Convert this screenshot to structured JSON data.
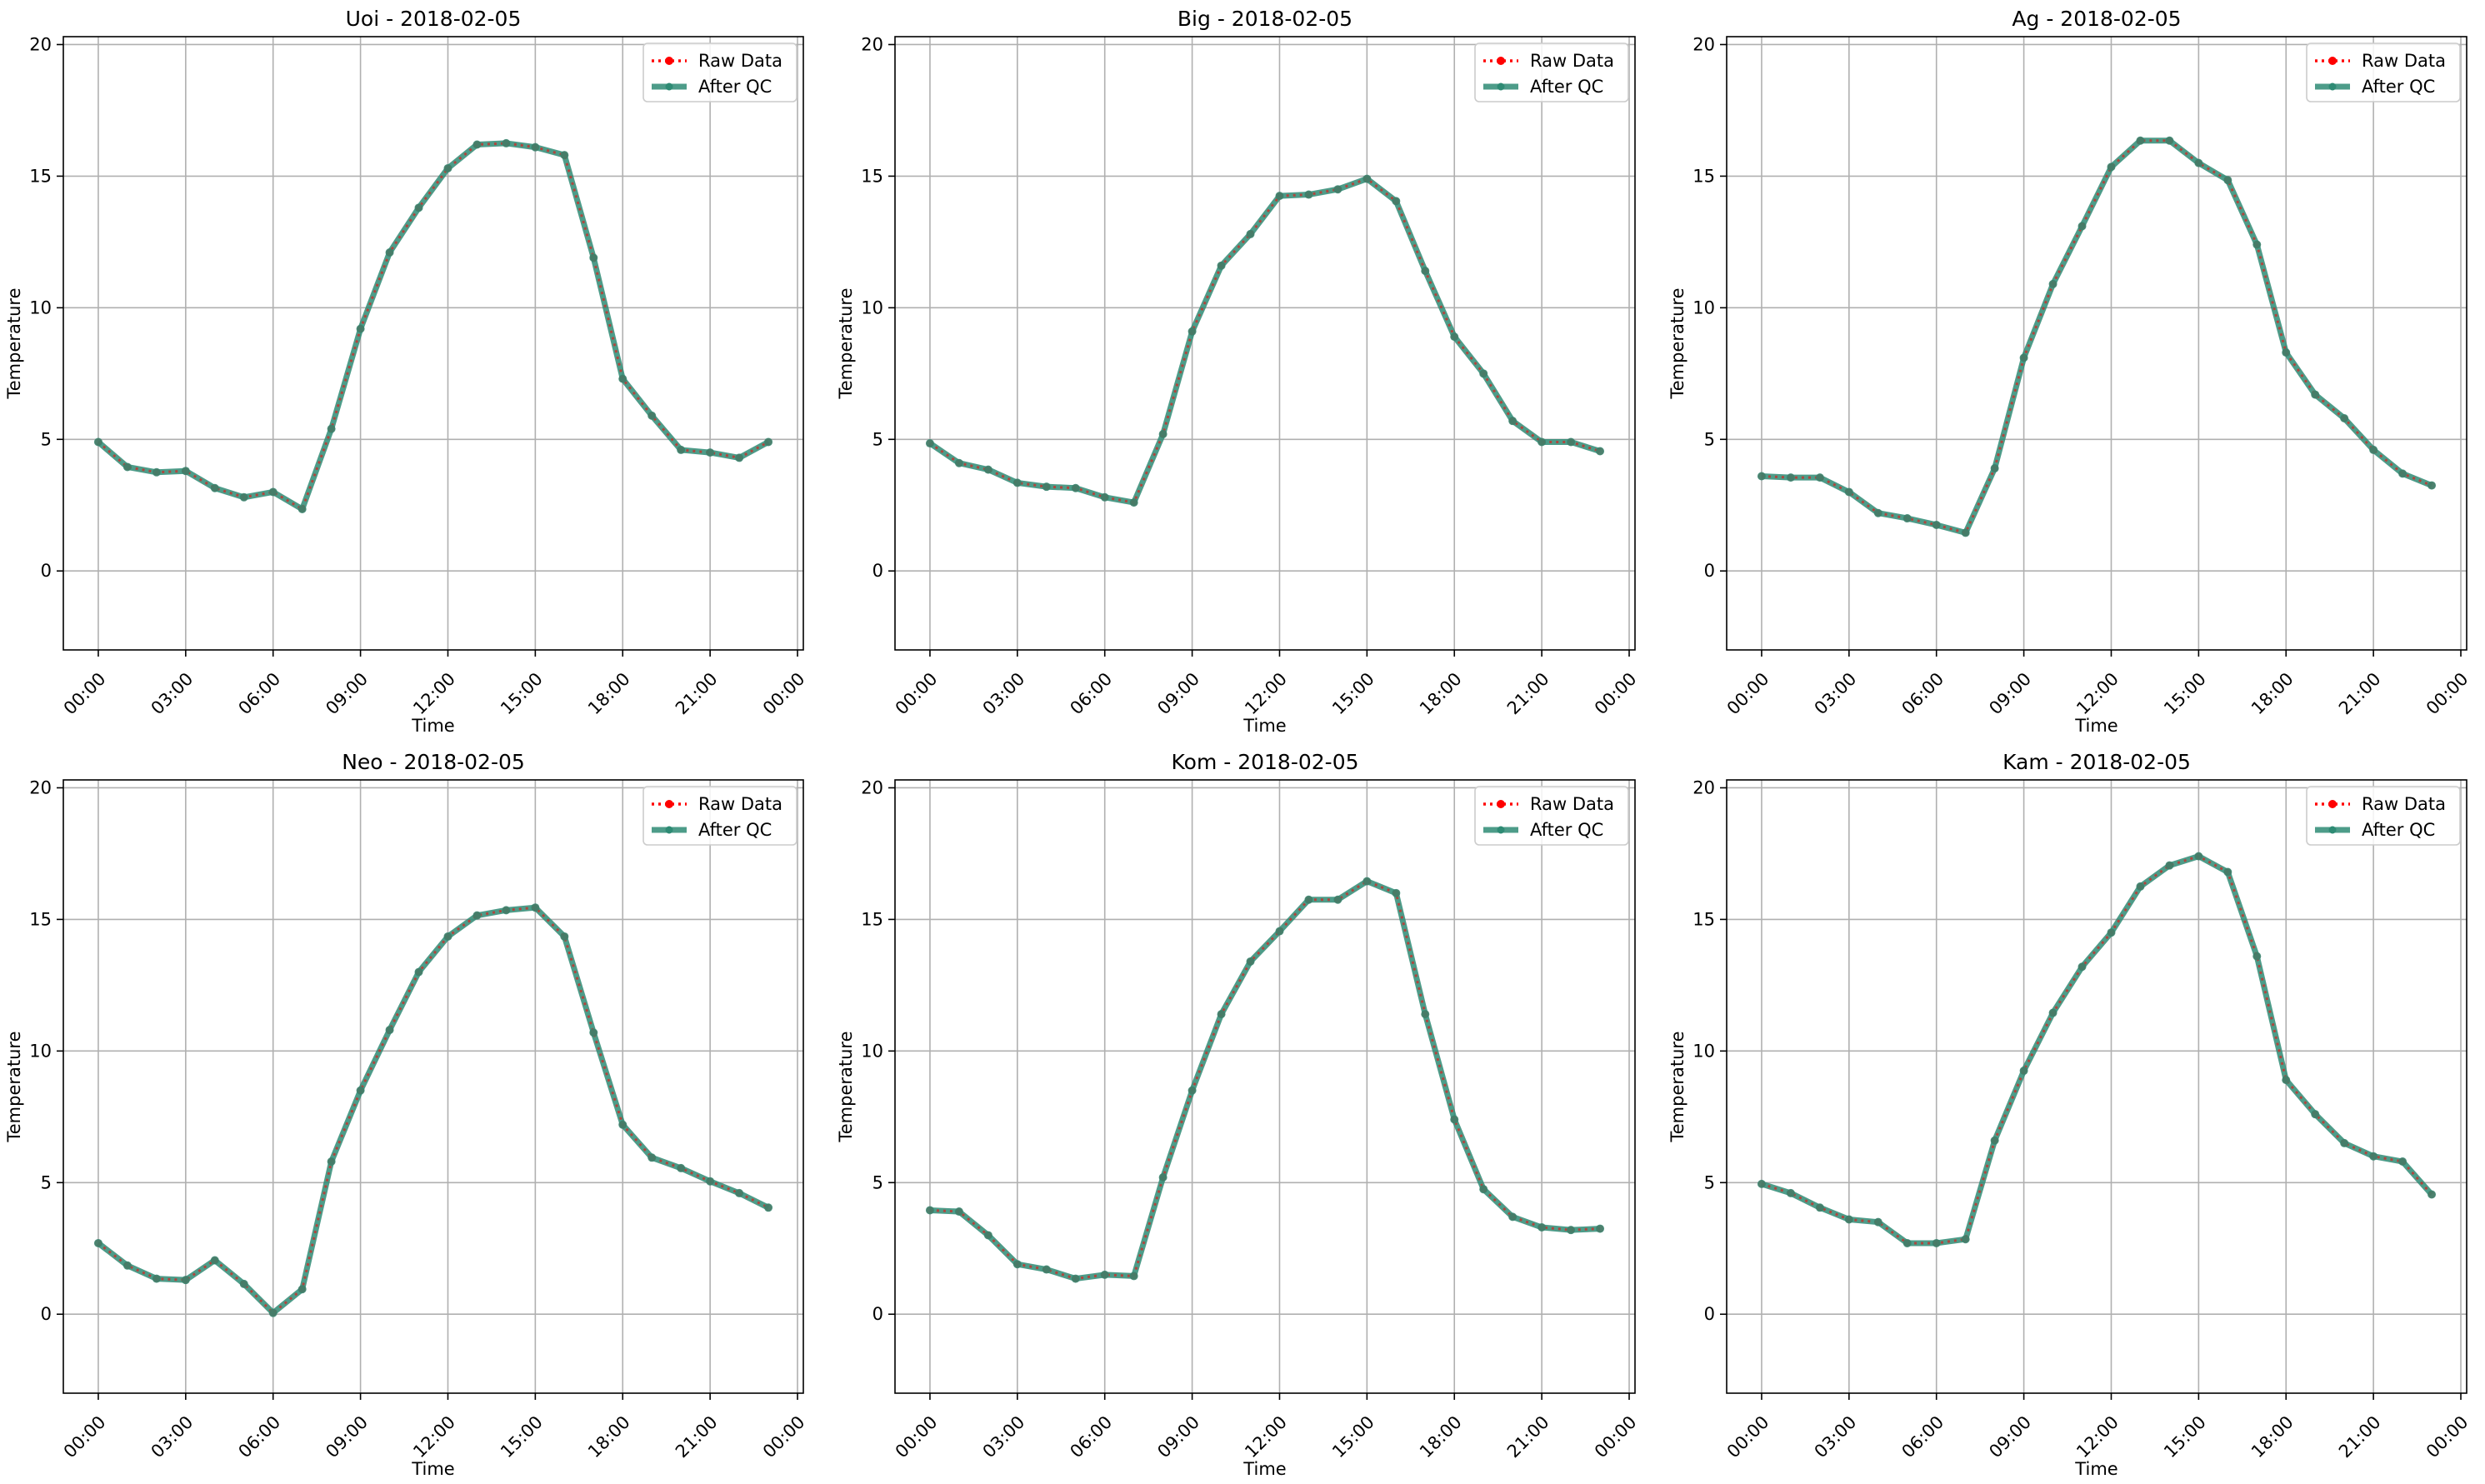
{
  "figure": {
    "legend_raw_label": "Raw Data",
    "legend_qc_label": "After QC"
  },
  "colors": {
    "raw": "#ff0000",
    "qc": "#2e8b74",
    "grid": "#b0b0b0"
  },
  "chart_data": [
    {
      "type": "line",
      "title": "Uoi - 2018-02-05",
      "xlabel": "Time",
      "ylabel": "Temperature",
      "xticks": [
        "00:00",
        "03:00",
        "06:00",
        "09:00",
        "12:00",
        "15:00",
        "18:00",
        "21:00",
        "00:00"
      ],
      "yticks": [
        0,
        5,
        10,
        15,
        20
      ],
      "ylim": [
        -3,
        20.3
      ],
      "xlim_hours": [
        -1.2,
        24.2
      ],
      "grid": true,
      "legend": "top-right",
      "x_hours": [
        0,
        1,
        2,
        3,
        4,
        5,
        6,
        7,
        8,
        9,
        10,
        11,
        12,
        13,
        14,
        15,
        16,
        17,
        18,
        19,
        20,
        21,
        22,
        23
      ],
      "series": [
        {
          "name": "Raw Data",
          "values": [
            4.9,
            3.95,
            3.75,
            3.8,
            3.15,
            2.8,
            3.0,
            2.35,
            5.4,
            9.2,
            12.1,
            13.8,
            15.3,
            16.2,
            16.25,
            16.1,
            15.8,
            11.9,
            7.3,
            5.9,
            4.6,
            4.5,
            4.3,
            4.9
          ]
        },
        {
          "name": "After QC",
          "values": [
            4.9,
            3.95,
            3.75,
            3.8,
            3.15,
            2.8,
            3.0,
            2.35,
            5.4,
            9.2,
            12.1,
            13.8,
            15.3,
            16.2,
            16.25,
            16.1,
            15.8,
            11.9,
            7.3,
            5.9,
            4.6,
            4.5,
            4.3,
            4.9
          ]
        }
      ]
    },
    {
      "type": "line",
      "title": "Big - 2018-02-05",
      "xlabel": "Time",
      "ylabel": "Temperature",
      "xticks": [
        "00:00",
        "03:00",
        "06:00",
        "09:00",
        "12:00",
        "15:00",
        "18:00",
        "21:00",
        "00:00"
      ],
      "yticks": [
        0,
        5,
        10,
        15,
        20
      ],
      "ylim": [
        -3,
        20.3
      ],
      "xlim_hours": [
        -1.2,
        24.2
      ],
      "grid": true,
      "legend": "top-right",
      "x_hours": [
        0,
        1,
        2,
        3,
        4,
        5,
        6,
        7,
        8,
        9,
        10,
        11,
        12,
        13,
        14,
        15,
        16,
        17,
        18,
        19,
        20,
        21,
        22,
        23
      ],
      "series": [
        {
          "name": "Raw Data",
          "values": [
            4.85,
            4.1,
            3.85,
            3.35,
            3.2,
            3.15,
            2.8,
            2.6,
            5.2,
            9.1,
            11.6,
            12.8,
            14.25,
            14.3,
            14.5,
            14.9,
            14.05,
            11.4,
            8.9,
            7.5,
            5.7,
            4.9,
            4.9,
            4.55
          ]
        },
        {
          "name": "After QC",
          "values": [
            4.85,
            4.1,
            3.85,
            3.35,
            3.2,
            3.15,
            2.8,
            2.6,
            5.2,
            9.1,
            11.6,
            12.8,
            14.25,
            14.3,
            14.5,
            14.9,
            14.05,
            11.4,
            8.9,
            7.5,
            5.7,
            4.9,
            4.9,
            4.55
          ]
        }
      ]
    },
    {
      "type": "line",
      "title": "Ag - 2018-02-05",
      "xlabel": "Time",
      "ylabel": "Temperature",
      "xticks": [
        "00:00",
        "03:00",
        "06:00",
        "09:00",
        "12:00",
        "15:00",
        "18:00",
        "21:00",
        "00:00"
      ],
      "yticks": [
        0,
        5,
        10,
        15,
        20
      ],
      "ylim": [
        -3,
        20.3
      ],
      "xlim_hours": [
        -1.2,
        24.2
      ],
      "grid": true,
      "legend": "top-right",
      "x_hours": [
        0,
        1,
        2,
        3,
        4,
        5,
        6,
        7,
        8,
        9,
        10,
        11,
        12,
        13,
        14,
        15,
        16,
        17,
        18,
        19,
        20,
        21,
        22,
        23
      ],
      "series": [
        {
          "name": "Raw Data",
          "values": [
            3.6,
            3.55,
            3.55,
            3.0,
            2.2,
            2.0,
            1.75,
            1.45,
            3.9,
            8.1,
            10.9,
            13.1,
            15.35,
            16.35,
            16.35,
            15.5,
            14.85,
            12.4,
            8.3,
            6.7,
            5.8,
            4.6,
            3.7,
            3.25
          ]
        },
        {
          "name": "After QC",
          "values": [
            3.6,
            3.55,
            3.55,
            3.0,
            2.2,
            2.0,
            1.75,
            1.45,
            3.9,
            8.1,
            10.9,
            13.1,
            15.35,
            16.35,
            16.35,
            15.5,
            14.85,
            12.4,
            8.3,
            6.7,
            5.8,
            4.6,
            3.7,
            3.25
          ]
        }
      ]
    },
    {
      "type": "line",
      "title": "Neo - 2018-02-05",
      "xlabel": "Time",
      "ylabel": "Temperature",
      "xticks": [
        "00:00",
        "03:00",
        "06:00",
        "09:00",
        "12:00",
        "15:00",
        "18:00",
        "21:00",
        "00:00"
      ],
      "yticks": [
        0,
        5,
        10,
        15,
        20
      ],
      "ylim": [
        -3,
        20.3
      ],
      "xlim_hours": [
        -1.2,
        24.2
      ],
      "grid": true,
      "legend": "top-right",
      "x_hours": [
        0,
        1,
        2,
        3,
        4,
        5,
        6,
        7,
        8,
        9,
        10,
        11,
        12,
        13,
        14,
        15,
        16,
        17,
        18,
        19,
        20,
        21,
        22,
        23
      ],
      "series": [
        {
          "name": "Raw Data",
          "values": [
            2.7,
            1.85,
            1.35,
            1.3,
            2.05,
            1.15,
            0.05,
            0.95,
            5.8,
            8.5,
            10.8,
            13.0,
            14.35,
            15.15,
            15.35,
            15.45,
            14.35,
            10.7,
            7.2,
            5.95,
            5.55,
            5.05,
            4.6,
            4.05
          ]
        },
        {
          "name": "After QC",
          "values": [
            2.7,
            1.85,
            1.35,
            1.3,
            2.05,
            1.15,
            0.05,
            0.95,
            5.8,
            8.5,
            10.8,
            13.0,
            14.35,
            15.15,
            15.35,
            15.45,
            14.35,
            10.7,
            7.2,
            5.95,
            5.55,
            5.05,
            4.6,
            4.05
          ]
        }
      ]
    },
    {
      "type": "line",
      "title": "Kom - 2018-02-05",
      "xlabel": "Time",
      "ylabel": "Temperature",
      "xticks": [
        "00:00",
        "03:00",
        "06:00",
        "09:00",
        "12:00",
        "15:00",
        "18:00",
        "21:00",
        "00:00"
      ],
      "yticks": [
        0,
        5,
        10,
        15,
        20
      ],
      "ylim": [
        -3,
        20.3
      ],
      "xlim_hours": [
        -1.2,
        24.2
      ],
      "grid": true,
      "legend": "top-right",
      "x_hours": [
        0,
        1,
        2,
        3,
        4,
        5,
        6,
        7,
        8,
        9,
        10,
        11,
        12,
        13,
        14,
        15,
        16,
        17,
        18,
        19,
        20,
        21,
        22,
        23
      ],
      "series": [
        {
          "name": "Raw Data",
          "values": [
            3.95,
            3.9,
            3.0,
            1.9,
            1.7,
            1.35,
            1.5,
            1.45,
            5.2,
            8.5,
            11.4,
            13.4,
            14.55,
            15.75,
            15.75,
            16.45,
            16.0,
            11.4,
            7.4,
            4.75,
            3.7,
            3.3,
            3.2,
            3.25
          ]
        },
        {
          "name": "After QC",
          "values": [
            3.95,
            3.9,
            3.0,
            1.9,
            1.7,
            1.35,
            1.5,
            1.45,
            5.2,
            8.5,
            11.4,
            13.4,
            14.55,
            15.75,
            15.75,
            16.45,
            16.0,
            11.4,
            7.4,
            4.75,
            3.7,
            3.3,
            3.2,
            3.25
          ]
        }
      ]
    },
    {
      "type": "line",
      "title": "Kam - 2018-02-05",
      "xlabel": "Time",
      "ylabel": "Temperature",
      "xticks": [
        "00:00",
        "03:00",
        "06:00",
        "09:00",
        "12:00",
        "15:00",
        "18:00",
        "21:00",
        "00:00"
      ],
      "yticks": [
        0,
        5,
        10,
        15,
        20
      ],
      "ylim": [
        -3,
        20.3
      ],
      "xlim_hours": [
        -1.2,
        24.2
      ],
      "grid": true,
      "legend": "top-right",
      "x_hours": [
        0,
        1,
        2,
        3,
        4,
        5,
        6,
        7,
        8,
        9,
        10,
        11,
        12,
        13,
        14,
        15,
        16,
        17,
        18,
        19,
        20,
        21,
        22,
        23
      ],
      "series": [
        {
          "name": "Raw Data",
          "values": [
            4.95,
            4.6,
            4.05,
            3.6,
            3.5,
            2.7,
            2.7,
            2.85,
            6.6,
            9.25,
            11.45,
            13.2,
            14.5,
            16.25,
            17.05,
            17.4,
            16.8,
            13.6,
            8.9,
            7.6,
            6.5,
            6.0,
            5.8,
            4.55
          ]
        },
        {
          "name": "After QC",
          "values": [
            4.95,
            4.6,
            4.05,
            3.6,
            3.5,
            2.7,
            2.7,
            2.85,
            6.6,
            9.25,
            11.45,
            13.2,
            14.5,
            16.25,
            17.05,
            17.4,
            16.8,
            13.6,
            8.9,
            7.6,
            6.5,
            6.0,
            5.8,
            4.55
          ]
        }
      ]
    }
  ]
}
